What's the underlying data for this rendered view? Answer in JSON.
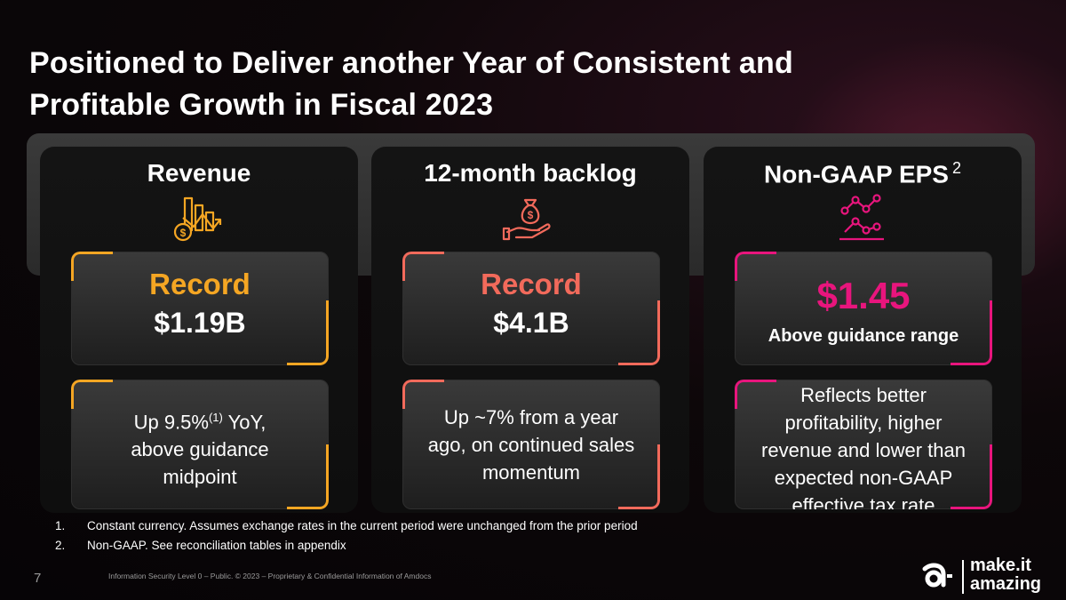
{
  "slide": {
    "title": "Positioned to Deliver another Year of Consistent and Profitable Growth in Fiscal 2023",
    "number": "7",
    "legal": "Information Security Level 0 – Public. © 2023 – Proprietary & Confidential Information of Amdocs"
  },
  "columns": [
    {
      "heading": "Revenue",
      "icon": "revenue-chart-dollar-icon",
      "accent": "#f5a623",
      "record_label": "Record",
      "value": "$1.19B",
      "detail_line1_pre": "Up 9.5%",
      "detail_sup": "(1)",
      "detail_line1_post": " YoY,",
      "detail_line2": "above guidance",
      "detail_line3": "midpoint"
    },
    {
      "heading": "12-month backlog",
      "icon": "money-bag-hand-icon",
      "accent": "#f26a5b",
      "record_label": "Record",
      "value": "$4.1B",
      "detail_line1": "Up ~7% from a year",
      "detail_line2": "ago, on continued sales",
      "detail_line3": "momentum"
    },
    {
      "heading": "Non-GAAP EPS",
      "heading_sup": "2",
      "icon": "line-graph-nodes-icon",
      "accent": "#e8157d",
      "value": "$1.45",
      "sub": "Above guidance range",
      "detail_line1": "Reflects better",
      "detail_line2": "profitability, higher",
      "detail_line3": "revenue and lower than",
      "detail_line4": "expected non-GAAP",
      "detail_line5": "effective tax rate"
    }
  ],
  "footnotes": [
    {
      "num": "1.",
      "text": "Constant currency. Assumes exchange rates in the current period were unchanged from the prior period"
    },
    {
      "num": "2.",
      "text": "Non-GAAP. See reconciliation tables in appendix"
    }
  ],
  "logo": {
    "line1": "make.it",
    "line2": "amazing"
  }
}
